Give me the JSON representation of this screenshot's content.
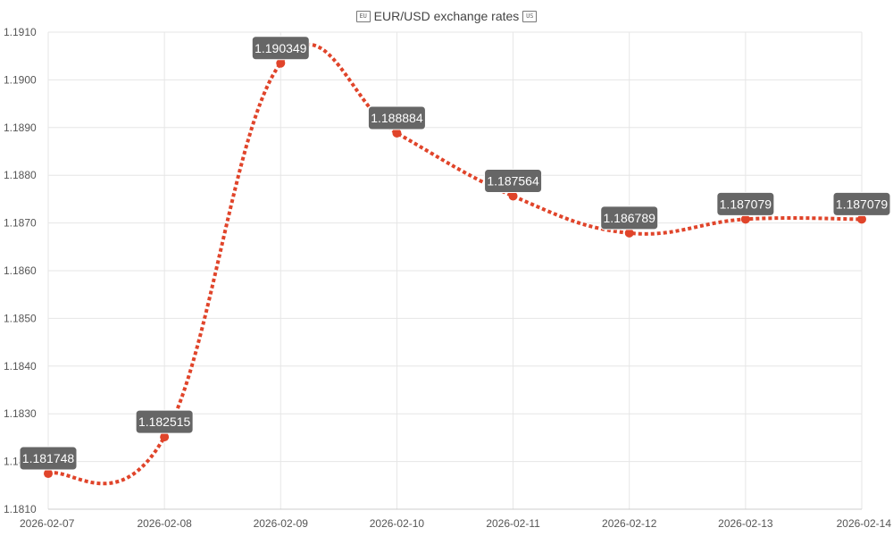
{
  "chart_data": {
    "type": "line",
    "title": "EUR/USD exchange rates",
    "title_icons": [
      "eu-flag-icon",
      "us-flag-icon"
    ],
    "base_flag_text": "EU",
    "quote_flag_text": "US",
    "categories": [
      "2026-02-07",
      "2026-02-08",
      "2026-02-09",
      "2026-02-10",
      "2026-02-11",
      "2026-02-12",
      "2026-02-13",
      "2026-02-14"
    ],
    "series": [
      {
        "values": [
          1.181748,
          1.182515,
          1.190349,
          1.188884,
          1.187564,
          1.186789,
          1.187079,
          1.187079
        ],
        "data_labels": [
          "1.181748",
          "1.182515",
          "1.190349",
          "1.188884",
          "1.187564",
          "1.186789",
          "1.187079",
          "1.187079"
        ],
        "color": "#e0442a",
        "line_style": "dotted",
        "smooth": true
      }
    ],
    "ylim": [
      1.181,
      1.191
    ],
    "y_ticks": [
      "1.1810",
      "1.1820",
      "1.1830",
      "1.1840",
      "1.1850",
      "1.1860",
      "1.1870",
      "1.1880",
      "1.1890",
      "1.1900",
      "1.1910"
    ],
    "xlabel": "",
    "ylabel": "",
    "grid": true,
    "legend": "none",
    "label_background": "#666666",
    "label_color": "#ffffff"
  }
}
